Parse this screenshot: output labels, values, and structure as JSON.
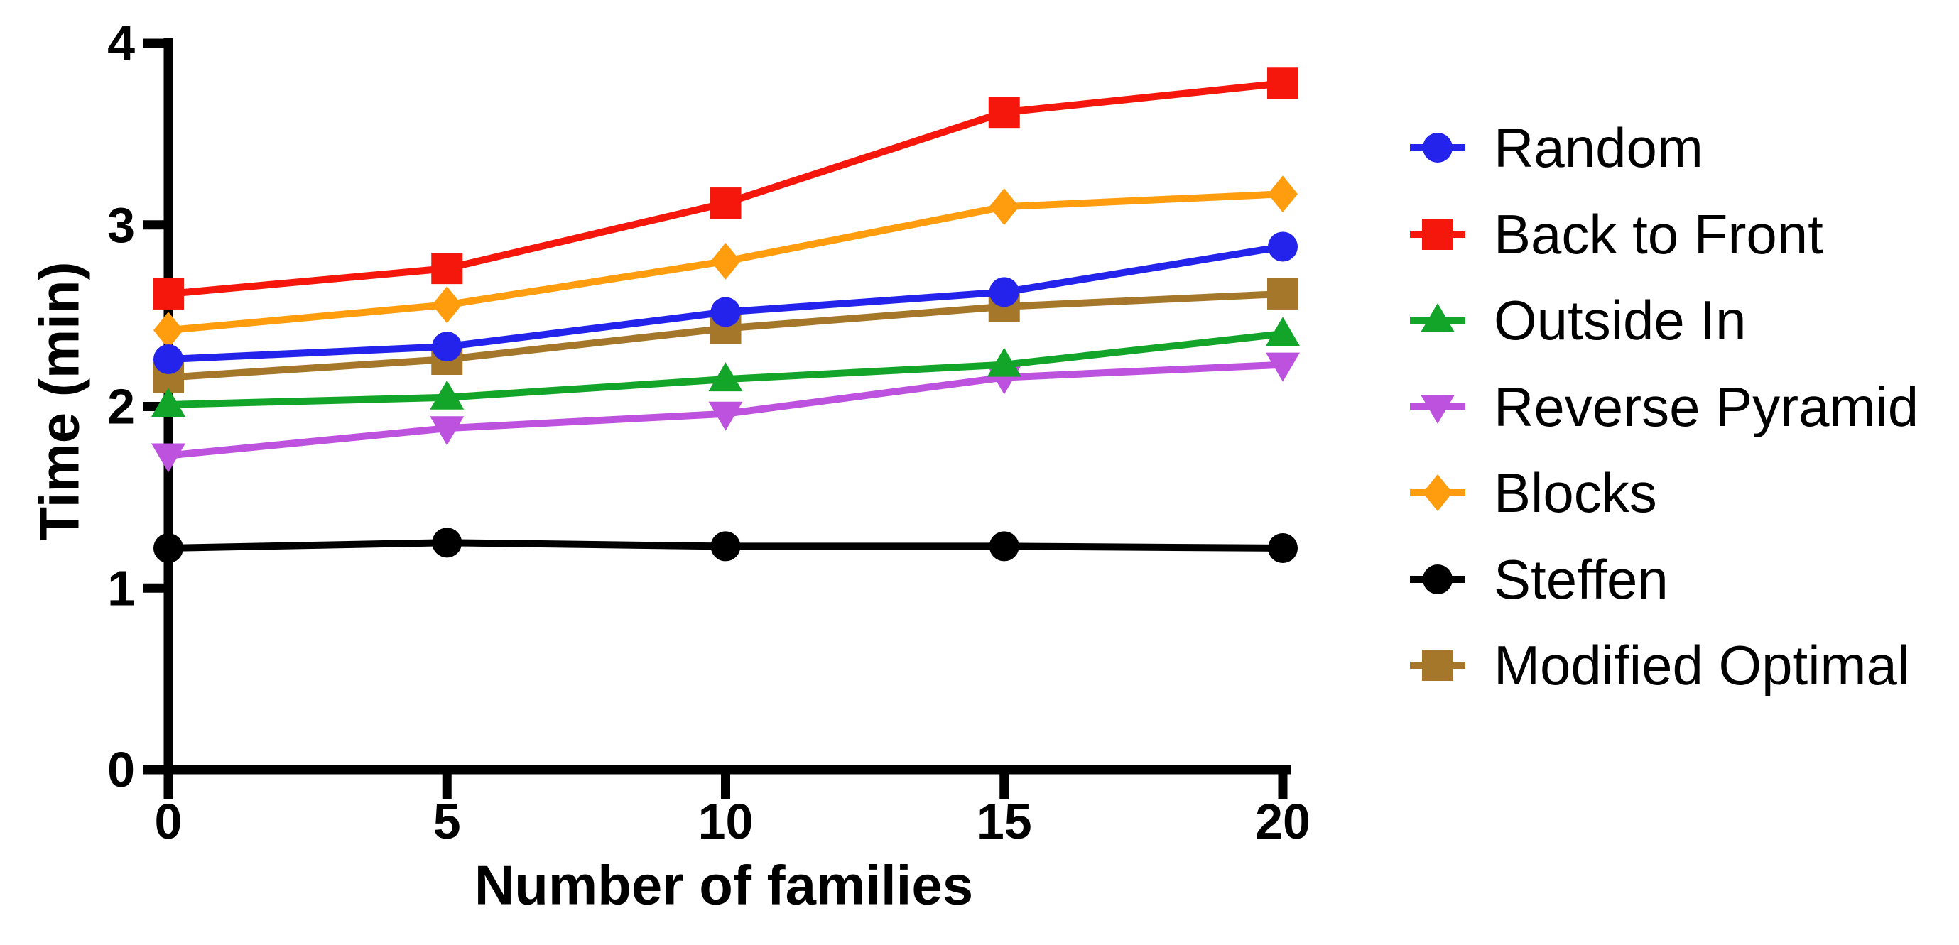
{
  "chart_data": {
    "type": "line",
    "title": "",
    "xlabel": "Number of families",
    "ylabel": "Time (min)",
    "x": [
      0,
      5,
      10,
      15,
      20
    ],
    "xlim": [
      0,
      20
    ],
    "ylim": [
      0,
      4
    ],
    "x_ticks": [
      "0",
      "5",
      "10",
      "15",
      "20"
    ],
    "x_tick_values": [
      0,
      5,
      10,
      15,
      20
    ],
    "y_ticks": [
      "0",
      "1",
      "2",
      "3",
      "4"
    ],
    "y_tick_values": [
      0,
      1,
      2,
      3,
      4
    ],
    "grid": false,
    "legend_position": "right",
    "axis_color": "#000000",
    "series": [
      {
        "name": "Random",
        "color": "#2323EB",
        "marker": "circle",
        "values": [
          2.26,
          2.33,
          2.52,
          2.63,
          2.88
        ]
      },
      {
        "name": "Back to Front",
        "color": "#F5160C",
        "marker": "square",
        "values": [
          2.62,
          2.76,
          3.12,
          3.62,
          3.78
        ]
      },
      {
        "name": "Outside In",
        "color": "#13A529",
        "marker": "triangle-up",
        "values": [
          2.01,
          2.05,
          2.15,
          2.23,
          2.4
        ]
      },
      {
        "name": "Reverse Pyramid",
        "color": "#BC52DE",
        "marker": "triangle-down",
        "values": [
          1.73,
          1.88,
          1.96,
          2.16,
          2.23
        ]
      },
      {
        "name": "Blocks",
        "color": "#FF9D0E",
        "marker": "diamond",
        "values": [
          2.42,
          2.56,
          2.8,
          3.1,
          3.17
        ]
      },
      {
        "name": "Steffen",
        "color": "#000000",
        "marker": "circle",
        "values": [
          1.22,
          1.25,
          1.23,
          1.23,
          1.22
        ]
      },
      {
        "name": "Modified Optimal",
        "color": "#A5772B",
        "marker": "square",
        "values": [
          2.16,
          2.26,
          2.43,
          2.55,
          2.62
        ]
      }
    ],
    "draw_order": [
      "Modified Optimal",
      "Reverse Pyramid",
      "Outside In",
      "Blocks",
      "Back to Front",
      "Steffen",
      "Random"
    ]
  }
}
